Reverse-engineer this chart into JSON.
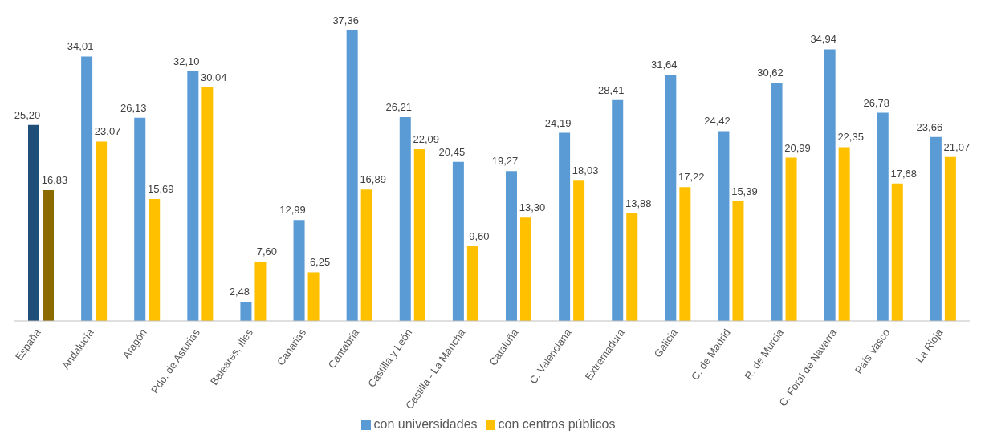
{
  "chart_data": {
    "type": "bar",
    "categories": [
      "España",
      "Andalucía",
      "Aragón",
      "Pdo. de Asturias",
      "Baleares, Illes",
      "Canarias",
      "Cantabria",
      "Castilla y León",
      "Castilla - La Mancha",
      "Cataluña",
      "C. Valenciana",
      "Extremadura",
      "Galicia",
      "C. de Madrid",
      "R. de Murcia",
      "C. Foral de Navarra",
      "País Vasco",
      "La Rioja"
    ],
    "series": [
      {
        "name": "con universidades",
        "color": "#5b9bd5",
        "colors": [
          "#1f4e79",
          "#5b9bd5",
          "#5b9bd5",
          "#5b9bd5",
          "#5b9bd5",
          "#5b9bd5",
          "#5b9bd5",
          "#5b9bd5",
          "#5b9bd5",
          "#5b9bd5",
          "#5b9bd5",
          "#5b9bd5",
          "#5b9bd5",
          "#5b9bd5",
          "#5b9bd5",
          "#5b9bd5",
          "#5b9bd5",
          "#5b9bd5"
        ],
        "values": [
          25.2,
          34.01,
          26.13,
          32.1,
          2.48,
          12.99,
          37.36,
          26.21,
          20.45,
          19.27,
          24.19,
          28.41,
          31.64,
          24.42,
          30.62,
          34.94,
          26.78,
          23.66
        ],
        "value_labels": [
          "25,20",
          "34,01",
          "26,13",
          "32,10",
          "2,48",
          "12,99",
          "37,36",
          "26,21",
          "20,45",
          "19,27",
          "24,19",
          "28,41",
          "31,64",
          "24,42",
          "30,62",
          "34,94",
          "26,78",
          "23,66"
        ]
      },
      {
        "name": "con centros públicos",
        "color": "#ffc000",
        "colors": [
          "#8b6a00",
          "#ffc000",
          "#ffc000",
          "#ffc000",
          "#ffc000",
          "#ffc000",
          "#ffc000",
          "#ffc000",
          "#ffc000",
          "#ffc000",
          "#ffc000",
          "#ffc000",
          "#ffc000",
          "#ffc000",
          "#ffc000",
          "#ffc000",
          "#ffc000",
          "#ffc000"
        ],
        "values": [
          16.83,
          23.07,
          15.69,
          30.04,
          7.6,
          6.25,
          16.89,
          22.09,
          9.6,
          13.3,
          18.03,
          13.88,
          17.22,
          15.39,
          20.99,
          22.35,
          17.68,
          21.07
        ],
        "value_labels": [
          "16,83",
          "23,07",
          "15,69",
          "30,04",
          "7,60",
          "6,25",
          "16,89",
          "22,09",
          "9,60",
          "13,30",
          "18,03",
          "13,88",
          "17,22",
          "15,39",
          "20,99",
          "22,35",
          "17,68",
          "21,07"
        ]
      }
    ],
    "tick_labels": "x",
    "legend": "bottom",
    "grid": false
  }
}
